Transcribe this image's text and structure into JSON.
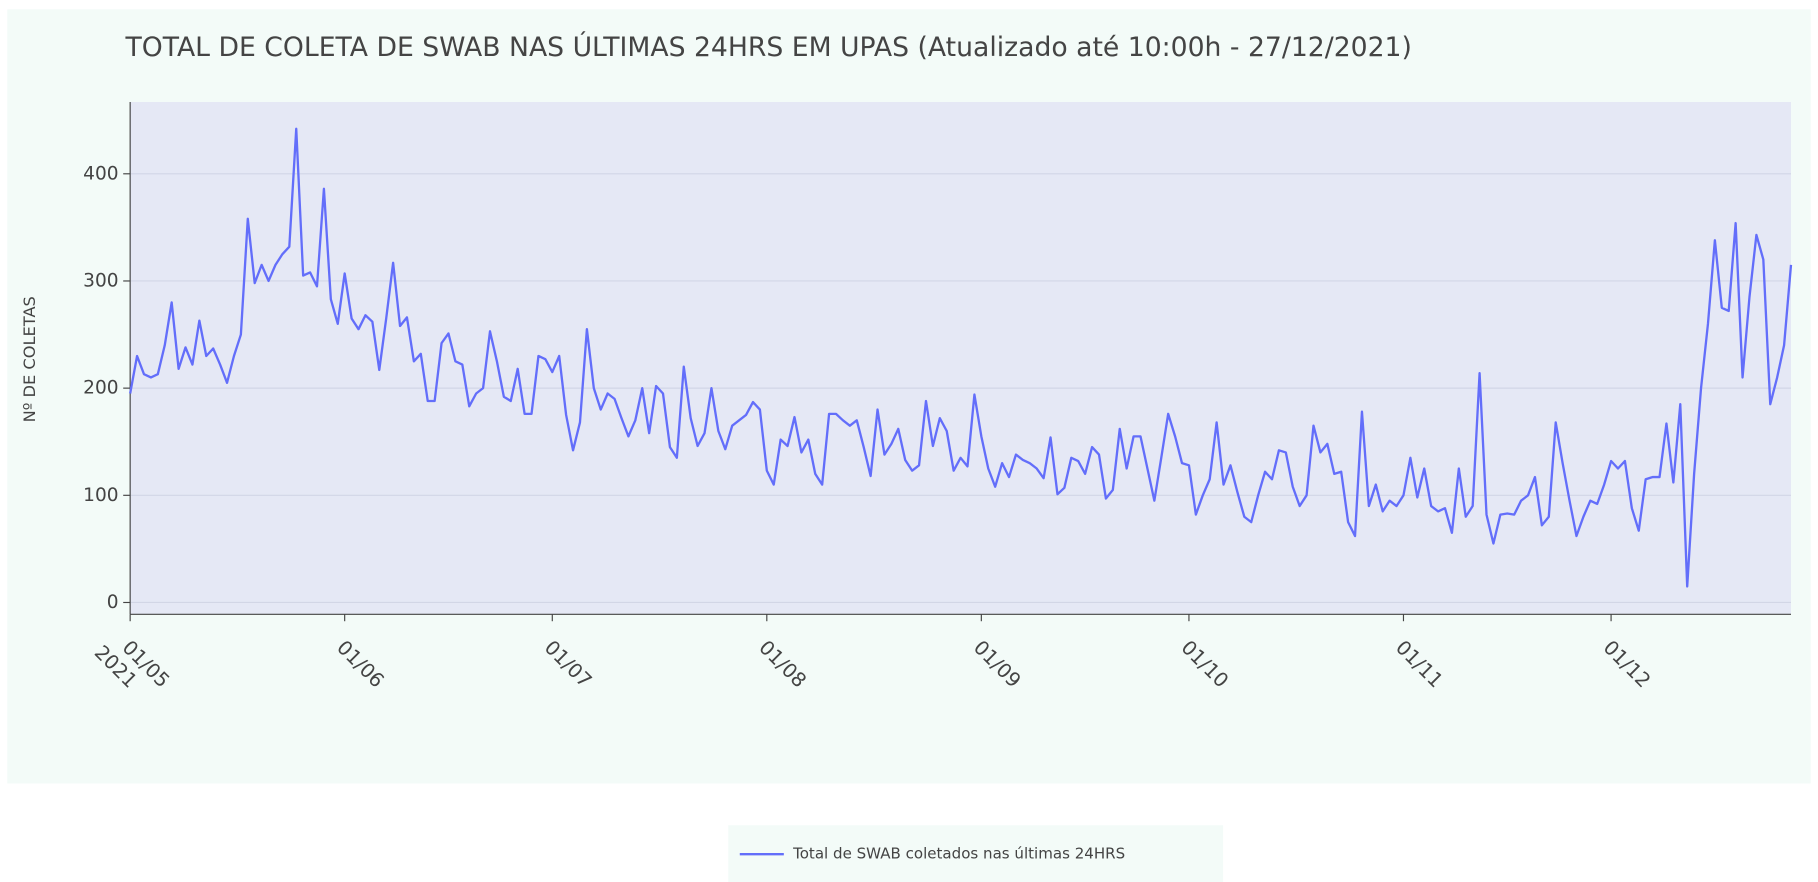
{
  "chart_data": {
    "type": "line",
    "title": "TOTAL DE COLETA DE SWAB NAS ÚLTIMAS 24HRS EM UPAS (Atualizado até 10:00h - 27/12/2021)",
    "y_label": "Nº DE COLETAS",
    "x": [
      "2021-05-01",
      "2021-05-02",
      "2021-05-03",
      "2021-05-04",
      "2021-05-05",
      "2021-05-06",
      "2021-05-07",
      "2021-05-08",
      "2021-05-09",
      "2021-05-10",
      "2021-05-11",
      "2021-05-12",
      "2021-05-13",
      "2021-05-14",
      "2021-05-15",
      "2021-05-16",
      "2021-05-17",
      "2021-05-18",
      "2021-05-19",
      "2021-05-20",
      "2021-05-21",
      "2021-05-22",
      "2021-05-23",
      "2021-05-24",
      "2021-05-25",
      "2021-05-26",
      "2021-05-27",
      "2021-05-28",
      "2021-05-29",
      "2021-05-30",
      "2021-05-31",
      "2021-06-01",
      "2021-06-02",
      "2021-06-03",
      "2021-06-04",
      "2021-06-05",
      "2021-06-06",
      "2021-06-07",
      "2021-06-08",
      "2021-06-09",
      "2021-06-10",
      "2021-06-11",
      "2021-06-12",
      "2021-06-13",
      "2021-06-14",
      "2021-06-15",
      "2021-06-16",
      "2021-06-17",
      "2021-06-18",
      "2021-06-19",
      "2021-06-20",
      "2021-06-21",
      "2021-06-22",
      "2021-06-23",
      "2021-06-24",
      "2021-06-25",
      "2021-06-26",
      "2021-06-27",
      "2021-06-28",
      "2021-06-29",
      "2021-06-30",
      "2021-07-01",
      "2021-07-02",
      "2021-07-03",
      "2021-07-04",
      "2021-07-05",
      "2021-07-06",
      "2021-07-07",
      "2021-07-08",
      "2021-07-09",
      "2021-07-10",
      "2021-07-11",
      "2021-07-12",
      "2021-07-13",
      "2021-07-14",
      "2021-07-15",
      "2021-07-16",
      "2021-07-17",
      "2021-07-18",
      "2021-07-19",
      "2021-07-20",
      "2021-07-21",
      "2021-07-22",
      "2021-07-23",
      "2021-07-24",
      "2021-07-25",
      "2021-07-26",
      "2021-07-27",
      "2021-07-28",
      "2021-07-29",
      "2021-07-30",
      "2021-07-31",
      "2021-08-01",
      "2021-08-02",
      "2021-08-03",
      "2021-08-04",
      "2021-08-05",
      "2021-08-06",
      "2021-08-07",
      "2021-08-08",
      "2021-08-09",
      "2021-08-10",
      "2021-08-11",
      "2021-08-12",
      "2021-08-13",
      "2021-08-14",
      "2021-08-15",
      "2021-08-16",
      "2021-08-17",
      "2021-08-18",
      "2021-08-19",
      "2021-08-20",
      "2021-08-21",
      "2021-08-22",
      "2021-08-23",
      "2021-08-24",
      "2021-08-25",
      "2021-08-26",
      "2021-08-27",
      "2021-08-28",
      "2021-08-29",
      "2021-08-30",
      "2021-08-31",
      "2021-09-01",
      "2021-09-02",
      "2021-09-03",
      "2021-09-04",
      "2021-09-05",
      "2021-09-06",
      "2021-09-07",
      "2021-09-08",
      "2021-09-09",
      "2021-09-10",
      "2021-09-11",
      "2021-09-12",
      "2021-09-13",
      "2021-09-14",
      "2021-09-15",
      "2021-09-16",
      "2021-09-17",
      "2021-09-18",
      "2021-09-19",
      "2021-09-20",
      "2021-09-21",
      "2021-09-22",
      "2021-09-23",
      "2021-09-24",
      "2021-09-25",
      "2021-09-26",
      "2021-09-27",
      "2021-09-28",
      "2021-09-29",
      "2021-09-30",
      "2021-10-01",
      "2021-10-02",
      "2021-10-03",
      "2021-10-04",
      "2021-10-05",
      "2021-10-06",
      "2021-10-07",
      "2021-10-08",
      "2021-10-09",
      "2021-10-10",
      "2021-10-11",
      "2021-10-12",
      "2021-10-13",
      "2021-10-14",
      "2021-10-15",
      "2021-10-16",
      "2021-10-17",
      "2021-10-18",
      "2021-10-19",
      "2021-10-20",
      "2021-10-21",
      "2021-10-22",
      "2021-10-23",
      "2021-10-24",
      "2021-10-25",
      "2021-10-26",
      "2021-10-27",
      "2021-10-28",
      "2021-10-29",
      "2021-10-30",
      "2021-10-31",
      "2021-11-01",
      "2021-11-02",
      "2021-11-03",
      "2021-11-04",
      "2021-11-05",
      "2021-11-06",
      "2021-11-07",
      "2021-11-08",
      "2021-11-09",
      "2021-11-10",
      "2021-11-11",
      "2021-11-12",
      "2021-11-13",
      "2021-11-14",
      "2021-11-15",
      "2021-11-16",
      "2021-11-17",
      "2021-11-18",
      "2021-11-19",
      "2021-11-20",
      "2021-11-21",
      "2021-11-22",
      "2021-11-23",
      "2021-11-24",
      "2021-11-25",
      "2021-11-26",
      "2021-11-27",
      "2021-11-28",
      "2021-11-29",
      "2021-11-30",
      "2021-12-01",
      "2021-12-02",
      "2021-12-03",
      "2021-12-04",
      "2021-12-05",
      "2021-12-06",
      "2021-12-07",
      "2021-12-08",
      "2021-12-09",
      "2021-12-10",
      "2021-12-11",
      "2021-12-12",
      "2021-12-13",
      "2021-12-14",
      "2021-12-15",
      "2021-12-16",
      "2021-12-17",
      "2021-12-18",
      "2021-12-19",
      "2021-12-20",
      "2021-12-21",
      "2021-12-22",
      "2021-12-23",
      "2021-12-24",
      "2021-12-25",
      "2021-12-26",
      "2021-12-27"
    ],
    "series": [
      {
        "name": "Total de SWAB coletados nas últimas 24HRS",
        "color": "#636efa",
        "values": [
          195,
          230,
          213,
          210,
          213,
          240,
          280,
          218,
          238,
          222,
          263,
          230,
          237,
          222,
          205,
          230,
          250,
          358,
          298,
          315,
          300,
          315,
          325,
          332,
          442,
          305,
          308,
          295,
          386,
          283,
          260,
          307,
          265,
          255,
          268,
          262,
          217,
          265,
          317,
          258,
          266,
          225,
          232,
          188,
          188,
          242,
          251,
          225,
          222,
          183,
          195,
          200,
          253,
          225,
          192,
          188,
          218,
          176,
          176,
          230,
          227,
          215,
          230,
          175,
          142,
          168,
          255,
          200,
          180,
          195,
          190,
          172,
          155,
          170,
          200,
          158,
          202,
          195,
          145,
          135,
          220,
          172,
          146,
          158,
          200,
          160,
          143,
          165,
          170,
          175,
          187,
          180,
          123,
          110,
          152,
          146,
          173,
          140,
          152,
          120,
          110,
          176,
          176,
          170,
          165,
          170,
          145,
          118,
          180,
          138,
          148,
          162,
          133,
          123,
          128,
          188,
          146,
          172,
          160,
          123,
          135,
          127,
          194,
          155,
          125,
          108,
          130,
          117,
          138,
          133,
          130,
          125,
          116,
          154,
          101,
          107,
          135,
          132,
          120,
          145,
          138,
          97,
          105,
          162,
          125,
          155,
          155,
          125,
          95,
          135,
          176,
          155,
          130,
          128,
          82,
          100,
          115,
          168,
          110,
          128,
          103,
          80,
          75,
          100,
          122,
          115,
          142,
          140,
          108,
          90,
          100,
          165,
          140,
          148,
          120,
          122,
          75,
          62,
          178,
          90,
          110,
          85,
          95,
          90,
          100,
          135,
          98,
          125,
          90,
          85,
          88,
          65,
          125,
          80,
          90,
          214,
          82,
          55,
          82,
          83,
          82,
          95,
          100,
          117,
          72,
          80,
          168,
          130,
          95,
          62,
          80,
          95,
          92,
          110,
          132,
          125,
          132,
          88,
          67,
          115,
          117,
          117,
          167,
          112,
          185,
          15,
          120,
          200,
          260,
          338,
          275,
          272,
          354,
          210,
          285,
          343,
          320,
          185,
          210,
          240,
          315
        ]
      }
    ],
    "xlim": [
      "2021-05-01",
      "2021-12-27"
    ],
    "xticks": [
      {
        "value": "2021-05-01",
        "label": "01/05\n2021"
      },
      {
        "value": "2021-06-01",
        "label": "01/06"
      },
      {
        "value": "2021-07-01",
        "label": "01/07"
      },
      {
        "value": "2021-08-01",
        "label": "01/08"
      },
      {
        "value": "2021-09-01",
        "label": "01/09"
      },
      {
        "value": "2021-10-01",
        "label": "01/10"
      },
      {
        "value": "2021-11-01",
        "label": "01/11"
      },
      {
        "value": "2021-12-01",
        "label": "01/12"
      }
    ],
    "ylim": [
      -11,
      467
    ],
    "yticks": [
      0,
      100,
      200,
      300,
      400
    ],
    "grid": true
  }
}
